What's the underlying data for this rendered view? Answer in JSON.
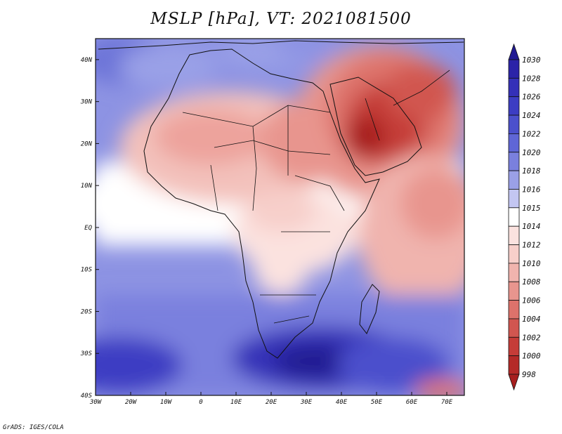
{
  "title": "MSLP [hPa], VT: 2021081500",
  "credit": "GrADS: IGES/COLA",
  "map": {
    "region": "Africa and Middle East",
    "lon_range": [
      -30,
      75
    ],
    "lat_range": [
      -40,
      45
    ],
    "lat_labels": [
      "40N",
      "30N",
      "20N",
      "10N",
      "EQ",
      "10S",
      "20S",
      "30S",
      "40S"
    ],
    "lon_labels": [
      "30W",
      "20W",
      "10W",
      "0",
      "10E",
      "20E",
      "30E",
      "40E",
      "50E",
      "60E",
      "70E"
    ]
  },
  "colorbar": {
    "levels": [
      "1030",
      "1028",
      "1026",
      "1024",
      "1022",
      "1020",
      "1018",
      "1016",
      "1015",
      "1014",
      "1012",
      "1010",
      "1008",
      "1006",
      "1004",
      "1002",
      "1000",
      "998"
    ],
    "colors": [
      "#211a93",
      "#2b23a8",
      "#3430b8",
      "#3c3dc3",
      "#4b50cc",
      "#5f66d6",
      "#7a80de",
      "#9aa0e7",
      "#c3c6f2",
      "#ffffff",
      "#fbe2df",
      "#f7cfca",
      "#f0b4ae",
      "#e8958e",
      "#dd726b",
      "#d15650",
      "#c53c38",
      "#b42a28",
      "#a71f1f"
    ]
  }
}
